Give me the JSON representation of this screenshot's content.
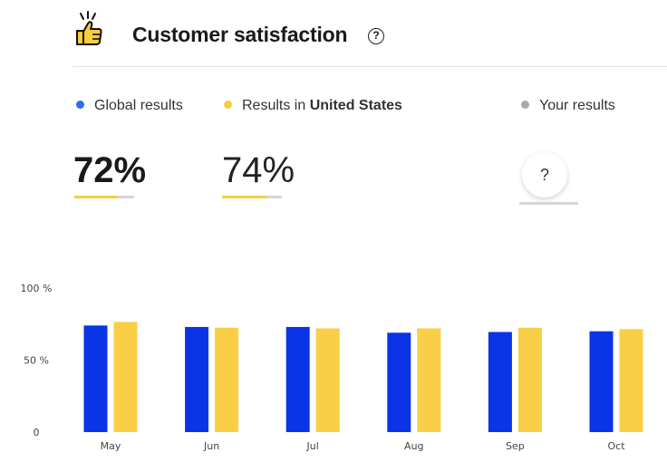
{
  "header": {
    "title": "Customer satisfaction",
    "title_icon": "thumbs-up-icon",
    "help_icon": "question-circle-icon",
    "help_glyph": "?"
  },
  "legend": {
    "global": {
      "label": "Global results",
      "color": "#2f6bf0"
    },
    "country": {
      "label_prefix": "Results in ",
      "label_strong": "United States",
      "color": "#f6cd3c"
    },
    "yours": {
      "label": "Your results",
      "color": "#a9a9a9"
    }
  },
  "scores": {
    "global": {
      "text": "72%",
      "value": 0.72
    },
    "country": {
      "text": "74%",
      "value": 0.74
    },
    "yours": {
      "text": "?",
      "value": 0
    }
  },
  "chart_data": {
    "type": "bar",
    "categories": [
      "May",
      "Jun",
      "Jul",
      "Aug",
      "Sep",
      "Oct"
    ],
    "series": [
      {
        "name": "Global results",
        "color": "#0a34e6",
        "values": [
          74,
          73,
          73,
          69,
          69.5,
          70
        ]
      },
      {
        "name": "Results in United States",
        "color": "#f8cf46",
        "values": [
          76.5,
          72.5,
          72,
          72,
          72.5,
          71.5
        ]
      }
    ],
    "y_ticks": [
      {
        "value": 0,
        "label": "0"
      },
      {
        "value": 50,
        "label": "50 %"
      },
      {
        "value": 100,
        "label": "100 %"
      }
    ],
    "ylim": [
      0,
      100
    ],
    "grid": false,
    "legend": "none"
  }
}
